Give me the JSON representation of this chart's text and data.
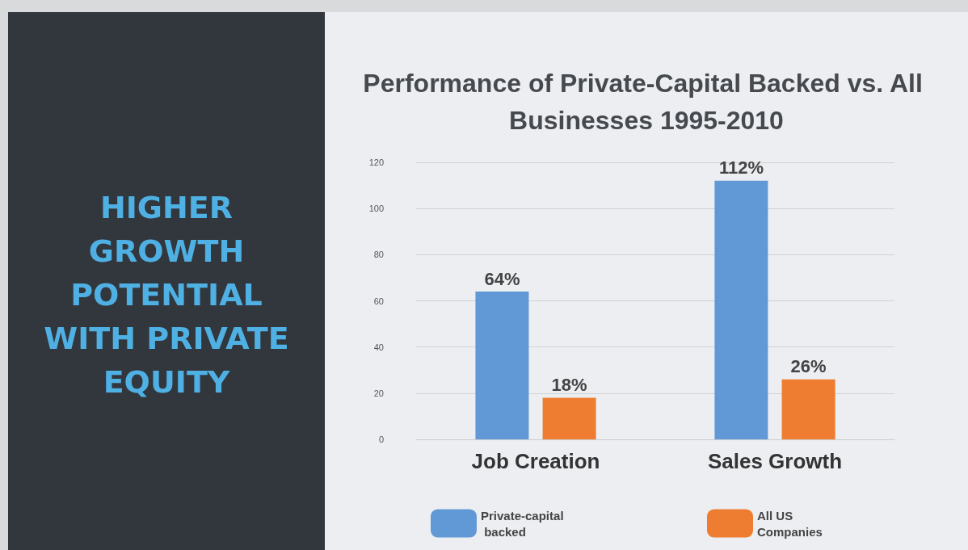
{
  "chart_data": {
    "type": "bar",
    "title": "Performance of Private-Capital Backed vs. All Businesses 1995-2010",
    "annotations": [
      "HIGHER GROWTH POTENTIAL WITH PRIVATE EQUITY"
    ],
    "categories": [
      "Job Creation",
      "Sales Growth"
    ],
    "series": [
      {
        "name": "Private-capital backed",
        "color": "#6199d6",
        "values": [
          64,
          112
        ],
        "value_labels": [
          "64%",
          "112%"
        ]
      },
      {
        "name": "All US Companies",
        "color": "#ee7d31",
        "values": [
          18,
          26
        ],
        "value_labels": [
          "18%",
          "26%"
        ]
      }
    ],
    "ylim": [
      0,
      120
    ],
    "yticks": [
      0,
      20,
      40,
      60,
      80,
      100,
      120
    ],
    "grid": "y",
    "legend": "bottom"
  }
}
